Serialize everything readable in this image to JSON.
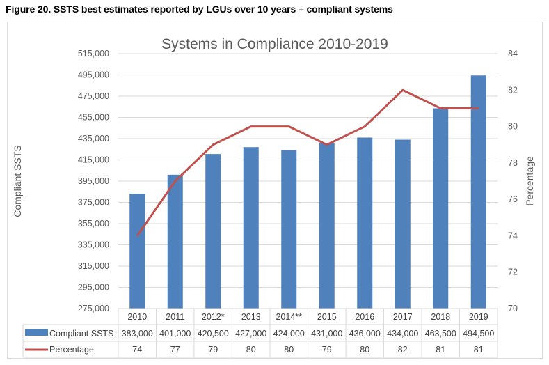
{
  "figure_caption": "Figure 20. SSTS best estimates reported by LGUs over 10 years – compliant systems",
  "chart_data": {
    "type": "bar",
    "title": "Systems in Compliance 2010-2019",
    "categories": [
      "2010",
      "2011",
      "2012*",
      "2013",
      "2014**",
      "2015",
      "2016",
      "2017",
      "2018",
      "2019"
    ],
    "series": [
      {
        "name": "Compliant SSTS",
        "type": "bar",
        "axis": "left",
        "color": "#4f81bd",
        "values": [
          383000,
          401000,
          420500,
          427000,
          424000,
          431000,
          436000,
          434000,
          463500,
          494500
        ],
        "labels": [
          "383,000",
          "401,000",
          "420,500",
          "427,000",
          "424,000",
          "431,000",
          "436,000",
          "434,000",
          "463,500",
          "494,500"
        ]
      },
      {
        "name": "Percentage",
        "type": "line",
        "axis": "right",
        "color": "#c0504d",
        "values": [
          74,
          77,
          79,
          80,
          80,
          79,
          80,
          82,
          81,
          81
        ],
        "labels": [
          "74",
          "77",
          "79",
          "80",
          "80",
          "79",
          "80",
          "82",
          "81",
          "81"
        ]
      }
    ],
    "ylabel": "Compliant SSTS",
    "ylim": [
      275000,
      515000
    ],
    "yticks": [
      275000,
      295000,
      315000,
      335000,
      355000,
      375000,
      395000,
      415000,
      435000,
      455000,
      475000,
      495000,
      515000
    ],
    "ytick_labels": [
      "275,000",
      "295,000",
      "315,000",
      "335,000",
      "355,000",
      "375,000",
      "395,000",
      "415,000",
      "435,000",
      "455,000",
      "475,000",
      "495,000",
      "515,000"
    ],
    "y2label": "Percentage",
    "y2lim": [
      70,
      84
    ],
    "y2ticks": [
      70,
      72,
      74,
      76,
      78,
      80,
      82,
      84
    ],
    "y2tick_labels": [
      "70",
      "72",
      "74",
      "76",
      "78",
      "80",
      "82",
      "84"
    ],
    "grid": true,
    "legend": "data-table-bottom"
  }
}
